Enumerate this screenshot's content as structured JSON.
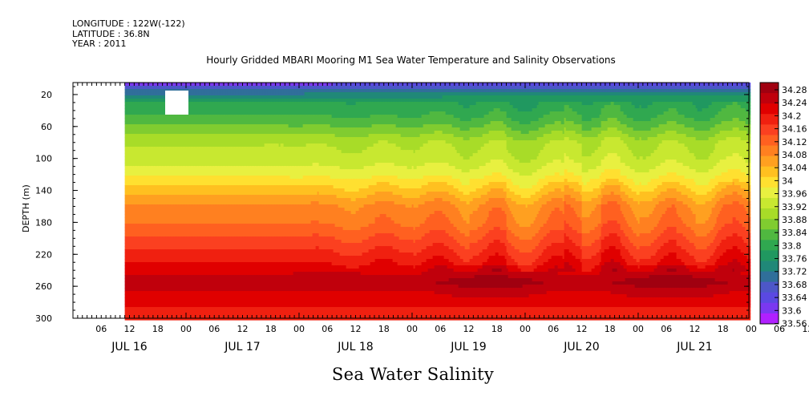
{
  "meta": {
    "longitude": "LONGITUDE : 122W(-122)",
    "latitude": "LATITUDE : 36.8N",
    "year": "YEAR : 2011"
  },
  "title": "Hourly Gridded MBARI Mooring M1 Sea Water Temperature and Salinity Observations",
  "xlabel": "Sea Water Salinity",
  "ylabel": "DEPTH (m)",
  "chart_data": {
    "type": "heatmap",
    "title": "Hourly Gridded MBARI Mooring M1 Sea Water Temperature and Salinity Observations",
    "xlabel": "Sea Water Salinity",
    "ylabel": "DEPTH (m)",
    "x_range_hours": "2011-07-16T00:00 to 2011-07-21T23:00",
    "x_hour_ticks": [
      "06",
      "12",
      "18",
      "00",
      "06",
      "12",
      "18",
      "00",
      "06",
      "12",
      "18",
      "00",
      "06",
      "12",
      "18",
      "00",
      "06",
      "12",
      "18",
      "00",
      "06",
      "12",
      "18",
      "00",
      "06",
      "12",
      "18"
    ],
    "x_day_labels": [
      "JUL 16",
      "JUL 17",
      "JUL 18",
      "JUL 19",
      "JUL 20",
      "JUL 21"
    ],
    "y_ticks": [
      20,
      60,
      100,
      140,
      180,
      220,
      260,
      300
    ],
    "ylim": [
      300,
      5
    ],
    "colorbar_levels": [
      "34.28",
      "34.24",
      "34.2",
      "34.16",
      "34.12",
      "34.08",
      "34.04",
      "34",
      "33.96",
      "33.92",
      "33.88",
      "33.84",
      "33.8",
      "33.76",
      "33.72",
      "33.68",
      "33.64",
      "33.6",
      "33.56"
    ],
    "colorbar_colors": [
      "#a00010",
      "#c0000c",
      "#e00000",
      "#f02010",
      "#fb4020",
      "#ff6020",
      "#ff8020",
      "#ffa020",
      "#ffc020",
      "#ffe030",
      "#e8f040",
      "#c8e830",
      "#a8dc28",
      "#80cc30",
      "#50b840",
      "#30a850",
      "#209860",
      "#208878",
      "#306f9a",
      "#4d57c8",
      "#5a49e2",
      "#7a38f0",
      "#b020ff"
    ],
    "depth_profile": [
      {
        "depth": 5,
        "salinity": 33.6
      },
      {
        "depth": 15,
        "salinity": 33.7
      },
      {
        "depth": 30,
        "salinity": 33.78
      },
      {
        "depth": 45,
        "salinity": 33.8
      },
      {
        "depth": 60,
        "salinity": 33.84
      },
      {
        "depth": 80,
        "salinity": 33.9
      },
      {
        "depth": 100,
        "salinity": 33.92
      },
      {
        "depth": 120,
        "salinity": 33.96
      },
      {
        "depth": 140,
        "salinity": 34.02
      },
      {
        "depth": 160,
        "salinity": 34.08
      },
      {
        "depth": 180,
        "salinity": 34.1
      },
      {
        "depth": 200,
        "salinity": 34.14
      },
      {
        "depth": 220,
        "salinity": 34.18
      },
      {
        "depth": 240,
        "salinity": 34.22
      },
      {
        "depth": 255,
        "salinity": 34.26
      },
      {
        "depth": 270,
        "salinity": 34.22
      },
      {
        "depth": 285,
        "salinity": 34.2
      },
      {
        "depth": 300,
        "salinity": 34.2
      }
    ],
    "grid": false
  }
}
